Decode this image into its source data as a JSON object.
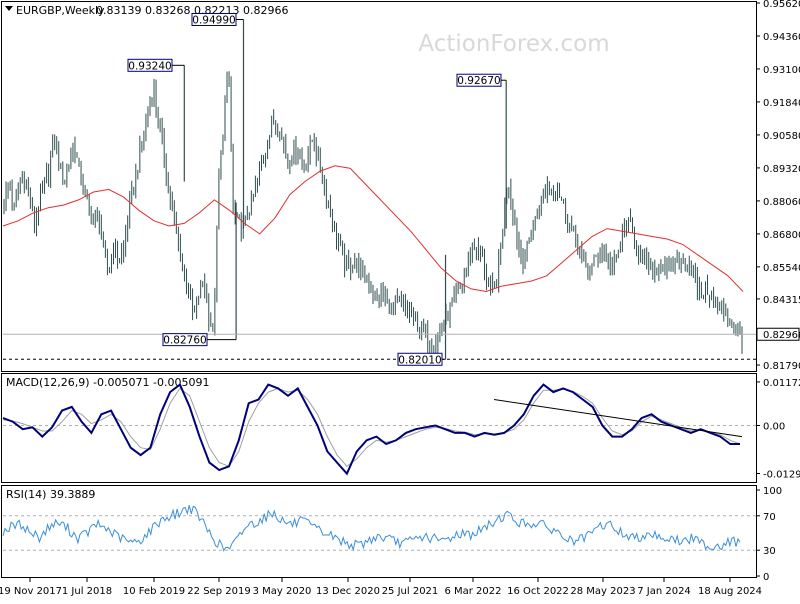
{
  "header": {
    "symbol": "EURGBP,Weekly",
    "ohlc": "0.83139 0.83268 0.82213 0.82966"
  },
  "watermark": "ActionForex.com",
  "colors": {
    "bars": "#2f4f4f",
    "ma": "#e03030",
    "macd_line": "#00007a",
    "signal_line": "#a0a0a0",
    "rsi_line": "#3a8fd8",
    "trendline": "#000000",
    "price_tag_border": "#000080"
  },
  "chart_data": [
    {
      "type": "line",
      "panel": "price",
      "title": "EURGBP,Weekly",
      "ohlc_last": {
        "open": 0.83139,
        "high": 0.83268,
        "low": 0.82213,
        "close": 0.82966
      },
      "ylim": [
        0.816,
        0.9562
      ],
      "y_ticks": [
        "0.95620",
        "0.94360",
        "0.93100",
        "0.91840",
        "0.90580",
        "0.89320",
        "0.88060",
        "0.86800",
        "0.85540",
        "0.84315",
        "0.82966",
        "0.81790"
      ],
      "annotations": [
        {
          "label": "0.93240",
          "value": 0.9324
        },
        {
          "label": "0.94990",
          "value": 0.9499
        },
        {
          "label": "0.92670",
          "value": 0.9267
        },
        {
          "label": "0.82760",
          "value": 0.8276
        },
        {
          "label": "0.82010",
          "value": 0.8201
        }
      ],
      "current_price_label": "0.82966",
      "support_label": "0.82010",
      "series": [
        {
          "values": [
            0.88,
            0.888,
            0.876,
            0.887,
            0.889,
            0.883,
            0.871,
            0.879,
            0.886,
            0.892,
            0.905,
            0.896,
            0.887,
            0.895,
            0.902,
            0.893,
            0.884,
            0.878,
            0.872,
            0.876,
            0.859,
            0.853,
            0.865,
            0.857,
            0.862,
            0.877,
            0.886,
            0.896,
            0.907,
            0.915,
            0.924,
            0.91,
            0.9,
            0.885,
            0.874,
            0.863,
            0.854,
            0.848,
            0.835,
            0.845,
            0.85,
            0.838,
            0.829,
            0.886,
            0.91,
            0.932,
            0.875,
            0.872,
            0.87,
            0.876,
            0.882,
            0.89,
            0.897,
            0.904,
            0.912,
            0.909,
            0.903,
            0.896,
            0.899,
            0.901,
            0.892,
            0.899,
            0.905,
            0.896,
            0.888,
            0.88,
            0.872,
            0.865,
            0.859,
            0.854,
            0.858,
            0.856,
            0.852,
            0.849,
            0.846,
            0.843,
            0.845,
            0.841,
            0.838,
            0.842,
            0.84,
            0.838,
            0.836,
            0.833,
            0.83,
            0.828,
            0.825,
            0.829,
            0.833,
            0.837,
            0.841,
            0.845,
            0.85,
            0.857,
            0.864,
            0.862,
            0.858,
            0.848,
            0.846,
            0.852,
            0.87,
            0.89,
            0.878,
            0.865,
            0.858,
            0.862,
            0.87,
            0.876,
            0.882,
            0.887,
            0.885,
            0.886,
            0.88,
            0.874,
            0.869,
            0.865,
            0.858,
            0.854,
            0.856,
            0.86,
            0.862,
            0.858,
            0.855,
            0.86,
            0.868,
            0.872,
            0.869,
            0.863,
            0.858,
            0.856,
            0.854,
            0.855,
            0.857,
            0.853,
            0.856,
            0.859,
            0.856,
            0.858,
            0.854,
            0.847,
            0.845,
            0.847,
            0.843,
            0.841,
            0.839,
            0.837,
            0.833,
            0.83,
            0.8297
          ]
        },
        {
          "name": "MA",
          "values": [
            0.871,
            0.873,
            0.876,
            0.878,
            0.879,
            0.881,
            0.884,
            0.885,
            0.882,
            0.877,
            0.873,
            0.871,
            0.872,
            0.876,
            0.881,
            0.877,
            0.872,
            0.868,
            0.874,
            0.883,
            0.888,
            0.892,
            0.894,
            0.893,
            0.887,
            0.881,
            0.875,
            0.869,
            0.862,
            0.855,
            0.85,
            0.847,
            0.846,
            0.848,
            0.849,
            0.85,
            0.852,
            0.857,
            0.862,
            0.867,
            0.87,
            0.869,
            0.868,
            0.867,
            0.866,
            0.864,
            0.86,
            0.856,
            0.852,
            0.846
          ]
        }
      ],
      "x_ticks": [
        "19 Nov 2017",
        "1 Jul 2018",
        "10 Feb 2019",
        "22 Sep 2019",
        "3 May 2020",
        "13 Dec 2020",
        "25 Jul 2021",
        "6 Mar 2022",
        "16 Oct 2022",
        "28 May 2023",
        "7 Jan 2024",
        "18 Aug 2024"
      ]
    },
    {
      "type": "line",
      "panel": "macd",
      "title": "MACD(12,26,9) -0.005071 -0.005091",
      "ylim": [
        -0.0147,
        0.0136
      ],
      "y_ticks": [
        "0.011727",
        "0.00",
        "-0.012951"
      ],
      "series": [
        {
          "name": "MACD",
          "values": [
            0.002,
            0.001,
            -0.001,
            -0.0005,
            -0.003,
            -0.0005,
            0.004,
            0.005,
            0.001,
            -0.002,
            0.003,
            0.004,
            -0.001,
            -0.006,
            -0.008,
            -0.006,
            0.003,
            0.009,
            0.011,
            0.005,
            -0.003,
            -0.01,
            -0.012,
            -0.011,
            -0.004,
            0.006,
            0.007,
            0.011,
            0.01,
            0.008,
            0.01,
            0.005,
            0.0,
            -0.007,
            -0.01,
            -0.013,
            -0.007,
            -0.004,
            -0.003,
            -0.005,
            -0.004,
            -0.002,
            -0.001,
            -0.0005,
            0.0,
            -0.001,
            -0.002,
            -0.002,
            -0.003,
            -0.002,
            -0.0025,
            -0.002,
            0.0,
            0.003,
            0.008,
            0.011,
            0.009,
            0.01,
            0.009,
            0.007,
            0.005,
            0.0,
            -0.003,
            -0.003,
            -0.001,
            0.002,
            0.003,
            0.001,
            0.0,
            -0.001,
            -0.002,
            -0.001,
            -0.002,
            -0.003,
            -0.005,
            -0.005
          ]
        },
        {
          "name": "Signal",
          "values": [
            0.0015,
            0.0012,
            0.0005,
            -0.0005,
            -0.0015,
            -0.0015,
            0.001,
            0.004,
            0.003,
            0.0005,
            0.0015,
            0.003,
            0.001,
            -0.003,
            -0.006,
            -0.0065,
            -0.001,
            0.006,
            0.01,
            0.008,
            0.001,
            -0.006,
            -0.01,
            -0.011,
            -0.007,
            0.001,
            0.006,
            0.009,
            0.01,
            0.009,
            0.0095,
            0.007,
            0.003,
            -0.003,
            -0.008,
            -0.011,
            -0.009,
            -0.006,
            -0.004,
            -0.0045,
            -0.004,
            -0.003,
            -0.002,
            -0.001,
            -0.0005,
            -0.0008,
            -0.0015,
            -0.0018,
            -0.0025,
            -0.0022,
            -0.0023,
            -0.002,
            -0.001,
            0.0015,
            0.006,
            0.0095,
            0.0095,
            0.0098,
            0.0092,
            0.0078,
            0.006,
            0.002,
            -0.0015,
            -0.0025,
            -0.0015,
            0.001,
            0.0025,
            0.0015,
            0.0005,
            -0.0005,
            -0.0015,
            -0.0012,
            -0.0018,
            -0.0025,
            -0.004,
            -0.005
          ]
        },
        {
          "name": "Trendline",
          "values": [
            0.007,
            -0.003
          ]
        }
      ]
    },
    {
      "type": "line",
      "panel": "rsi",
      "title": "RSI(14) 39.3889",
      "ylim": [
        0,
        100
      ],
      "y_ticks": [
        "100",
        "70",
        "30",
        "0"
      ],
      "levels": [
        70,
        30
      ],
      "series": [
        {
          "name": "RSI(14)",
          "values": [
            52,
            58,
            60,
            50,
            45,
            58,
            62,
            55,
            44,
            50,
            60,
            56,
            48,
            42,
            38,
            44,
            55,
            66,
            70,
            74,
            80,
            70,
            52,
            38,
            30,
            40,
            58,
            62,
            68,
            74,
            64,
            60,
            64,
            58,
            52,
            48,
            42,
            38,
            35,
            40,
            46,
            44,
            40,
            38,
            42,
            46,
            44,
            40,
            45,
            50,
            48,
            52,
            58,
            66,
            72,
            64,
            60,
            62,
            58,
            54,
            46,
            40,
            42,
            48,
            58,
            60,
            52,
            46,
            44,
            50,
            48,
            44,
            42,
            40,
            44,
            38,
            34,
            36,
            40,
            39
          ]
        }
      ]
    }
  ]
}
